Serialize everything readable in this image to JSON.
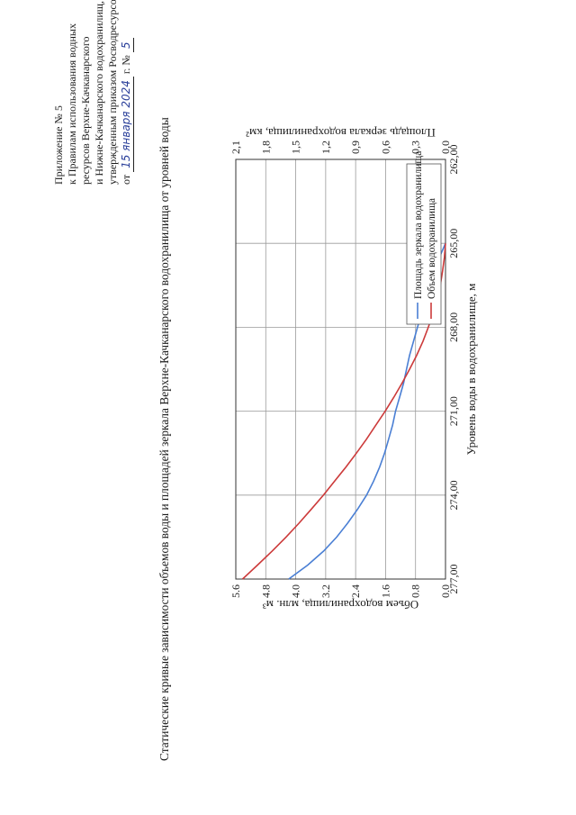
{
  "appendix": {
    "line1": "Приложение № 5",
    "line2": "к Правилам использования водных",
    "line3": "ресурсов Верхне-Качканарского",
    "line4": "и Нижне-Качканарского водохранилищ,",
    "line5": "утвержденным приказом Росводресурсов",
    "date_prefix": "от",
    "date_handwritten": "15 января 2024",
    "year_suffix": "г. №",
    "number_handwritten": "5"
  },
  "title": "Статические кривые зависимости объемов воды и площадей зеркала Верхне-Качканарского водохранилища от уровней воды",
  "chart_data": {
    "type": "line",
    "top_axis": {
      "label": "Объем водохранилища, млн. м³",
      "range": [
        0.0,
        5.6
      ],
      "ticks": [
        "0.0",
        "0.8",
        "1.6",
        "2.4",
        "3.2",
        "4.0",
        "4.8",
        "5.6"
      ]
    },
    "bottom_axis": {
      "label": "Площадь зеркала водохранилища, км²",
      "range": [
        0.0,
        2.1
      ],
      "ticks": [
        "0,0",
        "0,3",
        "0,6",
        "0,9",
        "1,2",
        "1,5",
        "1,8",
        "2,1"
      ]
    },
    "y_axis": {
      "label": "Уровень воды в водохранилище, м",
      "range": [
        262.0,
        277.0
      ],
      "ticks": [
        "277,00",
        "274,00",
        "271,00",
        "268,00",
        "265,00",
        "262,00"
      ]
    },
    "grid": true,
    "legend_position": "lower-right",
    "series": [
      {
        "name": "Площадь зеркала водохранилища",
        "color": "#4a7fd4",
        "axis": "bottom",
        "y": [
          265.0,
          265.5,
          266.0,
          266.5,
          267.0,
          267.5,
          268.0,
          268.5,
          269.0,
          269.5,
          270.0,
          270.5,
          271.0,
          271.5,
          272.0,
          272.5,
          273.0,
          273.5,
          274.0,
          274.5,
          275.0,
          275.5,
          276.0,
          276.5,
          277.0
        ],
        "x": [
          0.0,
          0.06,
          0.11,
          0.16,
          0.2,
          0.24,
          0.28,
          0.32,
          0.36,
          0.39,
          0.42,
          0.46,
          0.5,
          0.53,
          0.57,
          0.61,
          0.66,
          0.72,
          0.79,
          0.88,
          0.98,
          1.09,
          1.22,
          1.38,
          1.57
        ]
      },
      {
        "name": "Объем водохранилища",
        "color": "#cc3a3a",
        "axis": "top",
        "y": [
          265.0,
          265.5,
          266.0,
          266.5,
          267.0,
          267.5,
          268.0,
          268.5,
          269.0,
          269.5,
          270.0,
          270.5,
          271.0,
          271.5,
          272.0,
          272.5,
          273.0,
          273.5,
          274.0,
          274.5,
          275.0,
          275.5,
          276.0,
          276.5,
          277.0
        ],
        "x": [
          0.0,
          0.03,
          0.08,
          0.14,
          0.23,
          0.33,
          0.46,
          0.6,
          0.77,
          0.96,
          1.16,
          1.38,
          1.61,
          1.86,
          2.11,
          2.38,
          2.66,
          2.96,
          3.26,
          3.58,
          3.91,
          4.26,
          4.63,
          5.02,
          5.42
        ]
      }
    ]
  }
}
